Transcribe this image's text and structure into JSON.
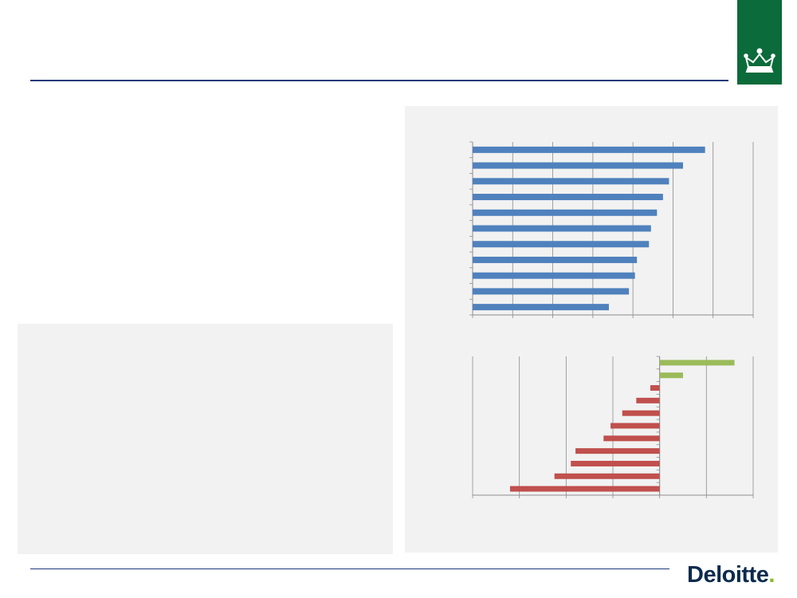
{
  "header": {
    "crest_icon": "royal-crown-icon",
    "crest_color": "#0b6b3a",
    "rule_color": "#1a3a7a"
  },
  "footer": {
    "logo_text": "Deloitte",
    "logo_dot": ".",
    "logo_color": "#0d2b4e",
    "logo_dot_color": "#86bc25"
  },
  "chart_data": [
    {
      "type": "bar",
      "orientation": "horizontal",
      "title": "",
      "xlabel": "",
      "ylabel": "",
      "categories": [
        "",
        "",
        "",
        "",
        "",
        "",
        "",
        "",
        "",
        "",
        ""
      ],
      "values": [
        5.8,
        5.25,
        4.9,
        4.75,
        4.6,
        4.45,
        4.4,
        4.1,
        4.05,
        3.9,
        3.4
      ],
      "xlim": [
        0,
        7
      ],
      "grid": true,
      "colors": [
        "#4f81bd"
      ]
    },
    {
      "type": "bar",
      "orientation": "horizontal",
      "title": "",
      "xlabel": "",
      "ylabel": "",
      "categories": [
        "",
        "",
        "",
        "",
        "",
        "",
        "",
        "",
        "",
        "",
        ""
      ],
      "values": [
        1.6,
        0.5,
        -0.2,
        -0.5,
        -0.8,
        -1.05,
        -1.2,
        -1.8,
        -1.9,
        -2.25,
        -3.2
      ],
      "xlim": [
        -4,
        2
      ],
      "grid": true,
      "colors": {
        "positive": "#9bbb59",
        "negative": "#c0504d"
      }
    }
  ]
}
